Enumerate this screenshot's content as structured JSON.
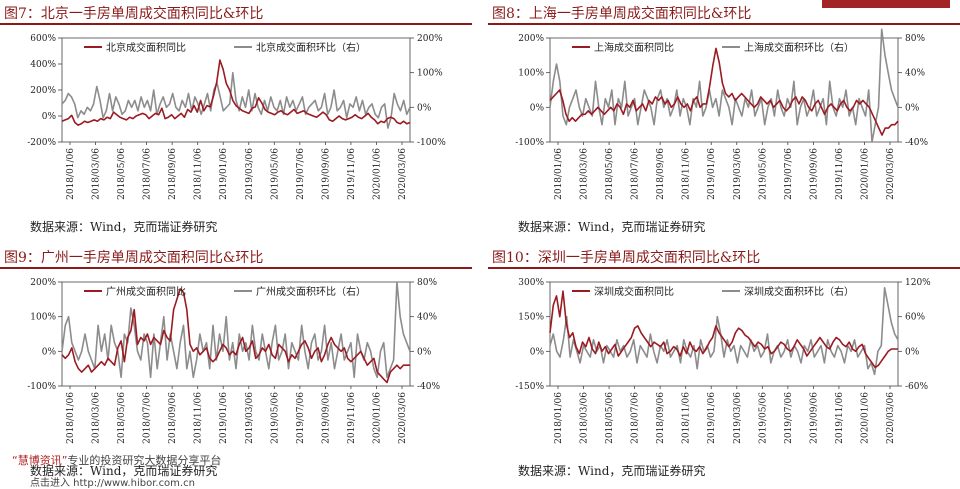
{
  "colors": {
    "primary": "#9b1b22",
    "secondary": "#8c8c8c",
    "title": "#8b1a1a"
  },
  "watermark": {
    "brand": "“慧博资讯”",
    "line1": "专业的投资研究大数据分享平台",
    "line2": "点击进入 http://www.hibor.com.cn"
  },
  "chart_data": [
    {
      "type": "line",
      "title": "图7：北京一手房单周成交面积同比&环比",
      "source": "数据来源：Wind，克而瑞证券研究",
      "left_ticks": [
        "600%",
        "400%",
        "200%",
        "0%",
        "-200%"
      ],
      "left_range": [
        -200,
        600
      ],
      "right_ticks": [
        "200%",
        "100%",
        "0%",
        "-100%"
      ],
      "right_range": [
        -100,
        200
      ],
      "x_labels": [
        "2018/01/06",
        "2018/03/06",
        "2018/05/06",
        "2018/07/06",
        "2018/09/06",
        "2018/11/06",
        "2019/01/06",
        "2019/03/06",
        "2019/05/06",
        "2019/07/06",
        "2019/09/06",
        "2019/11/06",
        "2020/01/06",
        "2020/03/06"
      ],
      "series": [
        {
          "name": "北京成交面积同比",
          "axis": "left",
          "values": [
            -40,
            -30,
            -20,
            5,
            -50,
            -70,
            -60,
            -40,
            -50,
            -40,
            -30,
            -40,
            -20,
            -30,
            -10,
            -20,
            30,
            10,
            -10,
            -20,
            -30,
            -10,
            -20,
            0,
            10,
            20,
            10,
            -20,
            0,
            20,
            10,
            60,
            -20,
            -10,
            10,
            -20,
            0,
            20,
            -10,
            50,
            30,
            80,
            30,
            120,
            40,
            80,
            70,
            150,
            260,
            430,
            360,
            250,
            200,
            120,
            80,
            60,
            40,
            30,
            20,
            60,
            70,
            140,
            100,
            50,
            30,
            20,
            10,
            30,
            40,
            20,
            10,
            30,
            50,
            20,
            30,
            40,
            20,
            10,
            0,
            -10,
            10,
            30,
            10,
            -30,
            -40,
            -20,
            0,
            -20,
            -30,
            -20,
            -10,
            10,
            -10,
            -20,
            0,
            20,
            -10,
            -30,
            -60,
            -40,
            -50,
            -20,
            -10,
            -20,
            -50,
            -60,
            -40,
            -60,
            -50
          ]
        },
        {
          "name": "北京成交面积环比（右）",
          "axis": "right",
          "values": [
            10,
            20,
            40,
            30,
            10,
            -30,
            -10,
            -20,
            0,
            -10,
            10,
            60,
            20,
            -30,
            -10,
            40,
            -10,
            30,
            10,
            -20,
            -10,
            20,
            0,
            20,
            -10,
            30,
            0,
            20,
            -10,
            50,
            -20,
            10,
            30,
            0,
            10,
            40,
            0,
            -10,
            20,
            0,
            40,
            -10,
            30,
            10,
            -20,
            10,
            40,
            -10,
            50,
            70,
            30,
            -10,
            0,
            10,
            100,
            20,
            -10,
            30,
            0,
            50,
            -10,
            40,
            0,
            -20,
            20,
            -10,
            30,
            0,
            -10,
            20,
            -20,
            30,
            0,
            20,
            -10,
            10,
            30,
            -20,
            0,
            10,
            20,
            -10,
            0,
            40,
            -20,
            0,
            50,
            -10,
            0,
            20,
            -30,
            10,
            0,
            30,
            -10,
            20,
            -20,
            0,
            10,
            -20,
            -30,
            0,
            10,
            -60,
            -30,
            40,
            10,
            -10,
            20,
            -20,
            0
          ]
        }
      ]
    },
    {
      "type": "line",
      "title": "图8：上海一手房单周成交面积同比&环比",
      "source": "数据来源：Wind，克而瑞证券研究",
      "left_ticks": [
        "200%",
        "100%",
        "0%",
        "-100%"
      ],
      "left_range": [
        -100,
        200
      ],
      "right_ticks": [
        "80%",
        "40%",
        "0%",
        "-40%"
      ],
      "right_range": [
        -40,
        80
      ],
      "x_labels": [
        "2018/01/06",
        "2018/03/06",
        "2018/05/06",
        "2018/07/06",
        "2018/09/06",
        "2018/11/06",
        "2019/01/06",
        "2019/03/06",
        "2019/05/06",
        "2019/07/06",
        "2019/09/06",
        "2019/11/06",
        "2020/01/06",
        "2020/03/06"
      ],
      "series": [
        {
          "name": "上海成交面积同比",
          "axis": "left",
          "values": [
            20,
            30,
            40,
            50,
            20,
            -20,
            -40,
            -30,
            -40,
            -30,
            -20,
            -20,
            -10,
            -20,
            -10,
            0,
            -10,
            -20,
            -10,
            0,
            -10,
            10,
            0,
            -20,
            10,
            0,
            20,
            -10,
            0,
            10,
            -10,
            20,
            10,
            30,
            20,
            30,
            10,
            20,
            0,
            10,
            30,
            10,
            0,
            10,
            -10,
            20,
            30,
            0,
            10,
            10,
            60,
            120,
            170,
            130,
            70,
            40,
            30,
            40,
            20,
            30,
            40,
            30,
            20,
            10,
            0,
            10,
            30,
            20,
            10,
            20,
            0,
            10,
            20,
            0,
            -10,
            0,
            20,
            30,
            10,
            30,
            20,
            0,
            -10,
            10,
            20,
            0,
            -20,
            0,
            10,
            0,
            -10,
            10,
            20,
            0,
            -10,
            0,
            20,
            10,
            20,
            10,
            0,
            -20,
            -40,
            -60,
            -80,
            -60,
            -60,
            -50,
            -50,
            -40
          ]
        },
        {
          "name": "上海成交面积环比（右）",
          "axis": "right",
          "values": [
            0,
            30,
            50,
            30,
            -10,
            -20,
            0,
            10,
            20,
            0,
            -10,
            10,
            0,
            -10,
            30,
            0,
            -20,
            10,
            0,
            20,
            -20,
            10,
            0,
            30,
            -10,
            0,
            10,
            -20,
            0,
            20,
            10,
            0,
            -20,
            10,
            20,
            0,
            10,
            -10,
            0,
            20,
            -10,
            10,
            0,
            -20,
            10,
            0,
            30,
            -10,
            0,
            20,
            0,
            10,
            -10,
            20,
            10,
            0,
            -20,
            10,
            0,
            -10,
            10,
            0,
            20,
            -10,
            0,
            10,
            -20,
            0,
            10,
            -10,
            20,
            0,
            -10,
            10,
            0,
            30,
            -20,
            0,
            10,
            -10,
            0,
            20,
            -10,
            0,
            10,
            -20,
            30,
            0,
            -10,
            10,
            0,
            20,
            -10,
            0,
            -20,
            10,
            0,
            -10,
            20,
            -40,
            -20,
            0,
            90,
            60,
            40,
            20,
            10,
            0
          ]
        }
      ]
    },
    {
      "type": "line",
      "title": "图9：广州一手房单周成交面积同比&环比",
      "source": "数据来源：Wind，克而瑞证券研究",
      "left_ticks": [
        "200%",
        "100%",
        "0%",
        "-100%"
      ],
      "left_range": [
        -100,
        200
      ],
      "right_ticks": [
        "80%",
        "40%",
        "0%",
        "-40%"
      ],
      "right_range": [
        -40,
        80
      ],
      "x_labels": [
        "2018/01/06",
        "2018/03/06",
        "2018/05/06",
        "2018/07/06",
        "2018/09/06",
        "2018/11/06",
        "2019/01/06",
        "2019/03/06",
        "2019/05/06",
        "2019/07/06",
        "2019/09/06",
        "2019/11/06",
        "2020/01/06",
        "2020/03/06"
      ],
      "series": [
        {
          "name": "广州成交面积同比",
          "axis": "left",
          "values": [
            -10,
            -20,
            -10,
            10,
            -30,
            -50,
            -60,
            -50,
            -40,
            -60,
            -50,
            -40,
            -30,
            -40,
            -20,
            -30,
            -40,
            10,
            30,
            -30,
            40,
            60,
            120,
            20,
            40,
            30,
            50,
            20,
            40,
            30,
            20,
            60,
            40,
            30,
            120,
            150,
            180,
            170,
            120,
            20,
            0,
            10,
            -10,
            0,
            10,
            -20,
            -30,
            -20,
            0,
            20,
            10,
            -10,
            0,
            -10,
            20,
            40,
            0,
            10,
            30,
            -20,
            -10,
            10,
            0,
            20,
            -10,
            -20,
            20,
            10,
            0,
            -30,
            -10,
            -20,
            0,
            20,
            30,
            10,
            -20,
            0,
            10,
            -30,
            -10,
            20,
            40,
            20,
            10,
            0,
            10,
            -20,
            -30,
            -20,
            -10,
            0,
            -20,
            -40,
            -30,
            -20,
            -60,
            -70,
            -80,
            -90,
            -60,
            -50,
            -40,
            -50,
            -40,
            -40,
            -40
          ]
        },
        {
          "name": "广州成交面积环比（右）",
          "axis": "right",
          "values": [
            0,
            30,
            40,
            10,
            0,
            -10,
            0,
            20,
            0,
            -10,
            -20,
            30,
            0,
            20,
            -10,
            30,
            10,
            0,
            -30,
            20,
            10,
            50,
            30,
            0,
            -10,
            20,
            10,
            -30,
            20,
            -20,
            10,
            40,
            -10,
            20,
            0,
            -20,
            10,
            30,
            -20,
            0,
            -30,
            -10,
            20,
            0,
            10,
            -20,
            30,
            -10,
            20,
            0,
            40,
            -10,
            10,
            -20,
            20,
            0,
            10,
            -10,
            30,
            0,
            -10,
            20,
            0,
            -20,
            10,
            30,
            -10,
            0,
            20,
            -20,
            10,
            0,
            -10,
            30,
            0,
            -20,
            10,
            20,
            -10,
            0,
            30,
            -10,
            10,
            -20,
            0,
            20,
            -10,
            0,
            10,
            -30,
            20,
            0,
            -10,
            10,
            0,
            -20,
            -30,
            0,
            10,
            -30,
            -20,
            -10,
            80,
            40,
            20,
            10,
            0
          ]
        }
      ]
    },
    {
      "type": "line",
      "title": "图10：深圳一手房单周成交面积同比&环比",
      "source": "数据来源：Wind，克而瑞证券研究",
      "left_ticks": [
        "300%",
        "150%",
        "0%",
        "-150%"
      ],
      "left_range": [
        -150,
        300
      ],
      "right_ticks": [
        "120%",
        "60%",
        "0%",
        "-60%"
      ],
      "right_range": [
        -60,
        120
      ],
      "x_labels": [
        "2018/01/06",
        "2018/03/06",
        "2018/05/06",
        "2018/07/06",
        "2018/09/06",
        "2018/11/06",
        "2019/01/06",
        "2019/03/06",
        "2019/05/06",
        "2019/07/06",
        "2019/09/06",
        "2019/11/06",
        "2020/01/06",
        "2020/03/06"
      ],
      "series": [
        {
          "name": "深圳成交面积同比",
          "axis": "left",
          "values": [
            80,
            200,
            240,
            150,
            260,
            120,
            60,
            80,
            20,
            -10,
            40,
            20,
            60,
            10,
            -10,
            40,
            0,
            20,
            -10,
            10,
            30,
            -20,
            0,
            20,
            40,
            60,
            100,
            110,
            80,
            60,
            40,
            20,
            40,
            30,
            20,
            40,
            -10,
            0,
            20,
            10,
            -20,
            20,
            -10,
            40,
            10,
            0,
            20,
            -10,
            10,
            40,
            60,
            110,
            80,
            60,
            40,
            20,
            40,
            80,
            100,
            90,
            70,
            60,
            40,
            20,
            40,
            30,
            10,
            20,
            -10,
            0,
            20,
            40,
            30,
            10,
            0,
            20,
            50,
            30,
            10,
            -20,
            0,
            20,
            40,
            60,
            40,
            20,
            10,
            40,
            60,
            50,
            30,
            20,
            40,
            10,
            0,
            20,
            30,
            -10,
            -30,
            -50,
            -70,
            -60,
            -40,
            -20,
            0,
            10,
            10,
            10
          ]
        },
        {
          "name": "深圳成交面积环比（右）",
          "axis": "right",
          "values": [
            10,
            30,
            0,
            -10,
            20,
            60,
            -10,
            20,
            0,
            -20,
            10,
            0,
            -10,
            20,
            0,
            10,
            -20,
            10,
            0,
            -10,
            20,
            0,
            10,
            -10,
            0,
            20,
            -20,
            10,
            0,
            -10,
            30,
            0,
            -20,
            10,
            0,
            20,
            -10,
            0,
            10,
            -20,
            20,
            0,
            -10,
            10,
            -30,
            20,
            0,
            10,
            -10,
            0,
            60,
            30,
            -10,
            20,
            0,
            10,
            -20,
            10,
            0,
            -10,
            20,
            0,
            10,
            -10,
            0,
            30,
            -20,
            0,
            10,
            -10,
            0,
            20,
            -10,
            10,
            0,
            -20,
            10,
            0,
            20,
            -10,
            0,
            10,
            -20,
            20,
            0,
            -10,
            10,
            0,
            -20,
            10,
            0,
            20,
            -10,
            0,
            10,
            -30,
            -20,
            -40,
            0,
            10,
            110,
            80,
            50,
            30,
            20
          ]
        }
      ]
    }
  ]
}
